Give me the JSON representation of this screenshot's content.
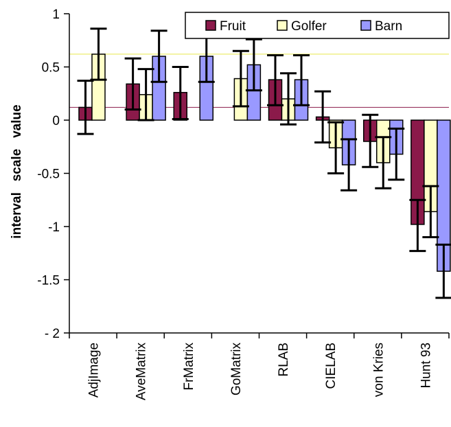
{
  "chart_data": {
    "type": "bar",
    "title": "",
    "xlabel": "",
    "ylabel": "interval   scale   value",
    "ylim": [
      -2,
      1
    ],
    "yticks": [
      "1",
      "0.5",
      "0",
      "-0.5",
      "-1",
      "-1.5",
      "- 2"
    ],
    "ytick_values": [
      1,
      0.5,
      0,
      -0.5,
      -1,
      -1.5,
      -2
    ],
    "legend_position": "top-right",
    "categories": [
      "AdjImage",
      "AveMatrix",
      "FrMatrix",
      "GoMatrix",
      "RLAB",
      "CIELAB",
      "von Kries",
      "Hunt 93"
    ],
    "series": [
      {
        "name": "Fruit",
        "color": "#8b1a4a",
        "values": [
          0.12,
          0.34,
          0.26,
          null,
          0.38,
          0.03,
          -0.2,
          -0.98
        ],
        "err_low": [
          -0.13,
          0.1,
          0.01,
          null,
          0.14,
          -0.21,
          -0.44,
          -1.23
        ],
        "err_high": [
          0.37,
          0.58,
          0.5,
          null,
          0.61,
          0.27,
          0.05,
          -0.75
        ]
      },
      {
        "name": "Golfer",
        "color": "#ffffc8",
        "values": [
          0.62,
          0.24,
          null,
          0.39,
          0.2,
          -0.26,
          -0.4,
          -0.86
        ],
        "err_low": [
          0.38,
          0.0,
          null,
          0.13,
          -0.04,
          -0.5,
          -0.64,
          -1.1
        ],
        "err_high": [
          0.86,
          0.48,
          null,
          0.65,
          0.44,
          -0.02,
          -0.16,
          -0.62
        ]
      },
      {
        "name": "Barn",
        "color": "#9999ff",
        "values": [
          null,
          0.6,
          0.6,
          0.52,
          0.38,
          -0.42,
          -0.32,
          -1.42
        ],
        "err_low": [
          null,
          0.36,
          0.36,
          0.28,
          0.14,
          -0.66,
          -0.56,
          -1.67
        ],
        "err_high": [
          null,
          0.84,
          0.84,
          0.76,
          0.61,
          -0.18,
          -0.08,
          -1.17
        ]
      }
    ],
    "reference_lines": [
      {
        "value": 0.62,
        "color": "#e8e84a"
      },
      {
        "value": 0.12,
        "color": "#8b1a4a"
      }
    ]
  }
}
